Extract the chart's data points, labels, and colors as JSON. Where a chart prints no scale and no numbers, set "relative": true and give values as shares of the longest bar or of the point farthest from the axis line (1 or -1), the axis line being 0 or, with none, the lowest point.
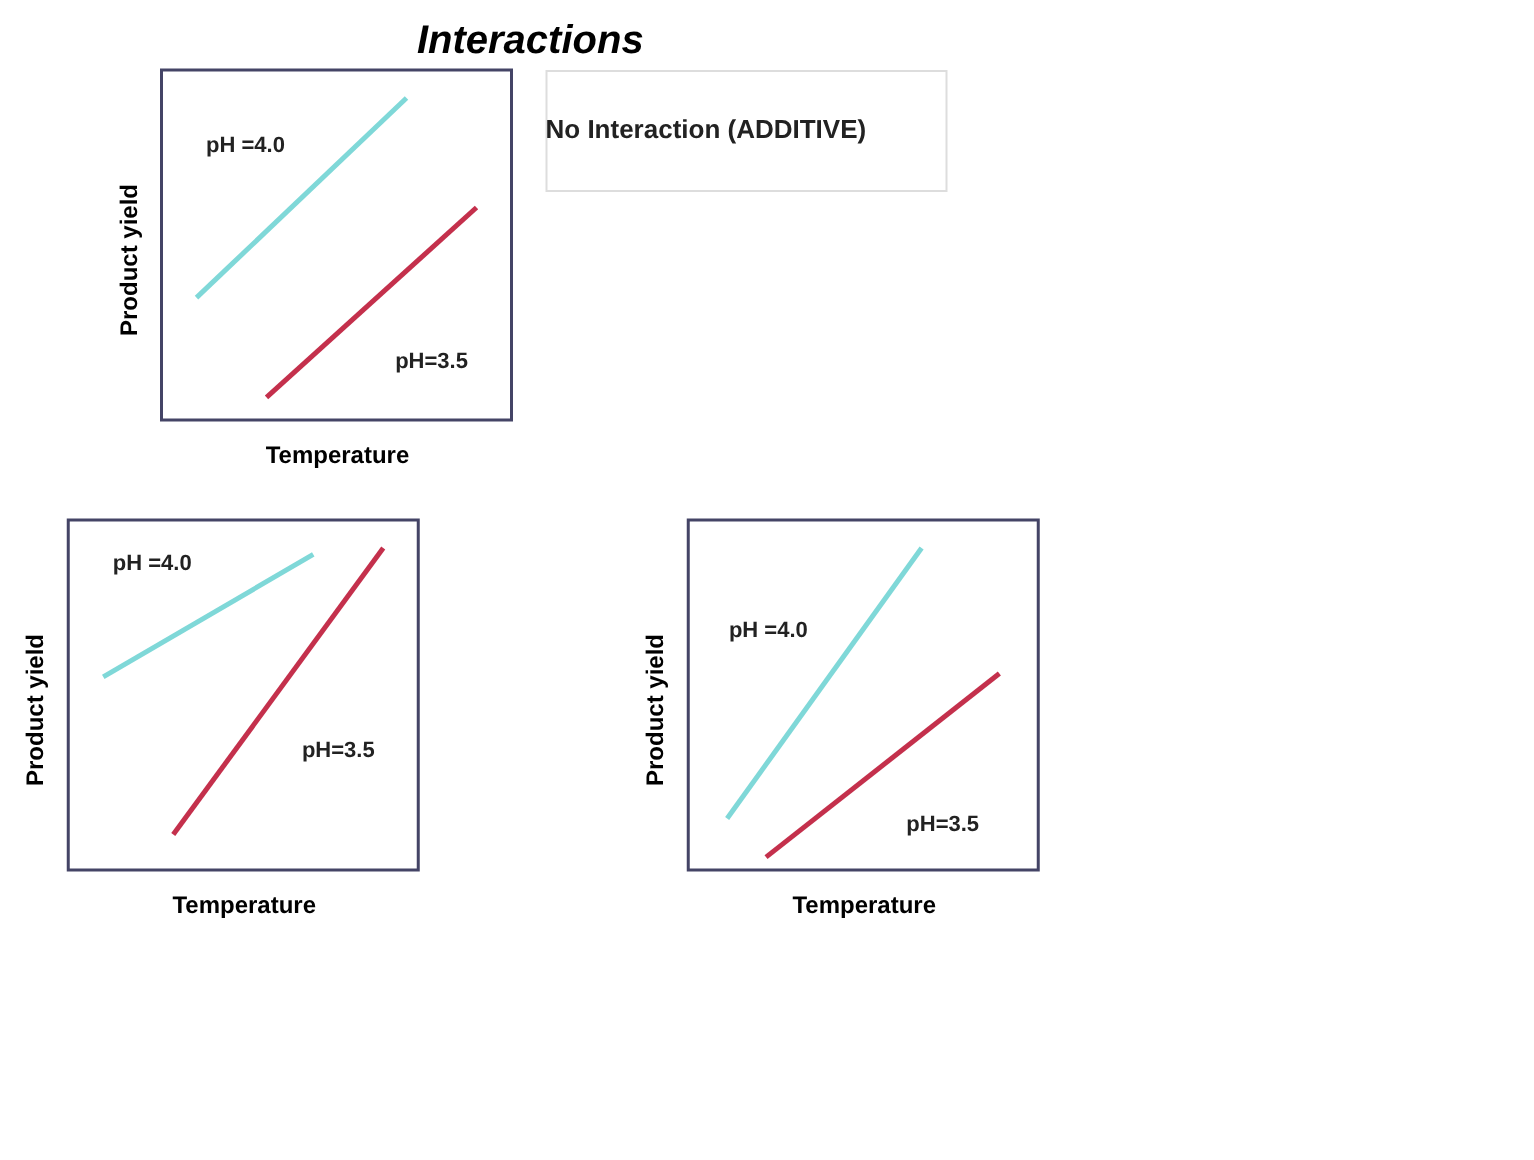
{
  "chart_data": [
    {
      "type": "line",
      "title": "Interactions",
      "xlabel": "Temperature",
      "ylabel": "Product yield",
      "relative": true,
      "tick_labels": false,
      "legend": false,
      "grid": false,
      "marker": "none",
      "line_style": "solid",
      "annotations": [
        "No Interaction (ADDITIVE)"
      ],
      "categories": [
        null,
        null,
        null,
        null,
        null,
        null,
        null,
        null,
        null
      ],
      "series": [
        {
          "name": "pH =4.0",
          "color": "#7fd8d8",
          "values": [
            0.38,
            null,
            null,
            null,
            null,
            null,
            1,
            null,
            null
          ]
        },
        {
          "name": "pH=3.5",
          "color": "#c4304c",
          "values": [
            null,
            null,
            0.07,
            null,
            null,
            null,
            null,
            null,
            0.66
          ]
        }
      ]
    },
    {
      "type": "line",
      "xlabel": "Temperature",
      "ylabel": "Product yield",
      "relative": true,
      "tick_labels": false,
      "legend": false,
      "grid": false,
      "marker": "none",
      "line_style": "solid",
      "categories": [
        null,
        null,
        null,
        null,
        null,
        null,
        null,
        null,
        null
      ],
      "series": [
        {
          "name": "pH =4.0",
          "color": "#7fd8d8",
          "values": [
            0.6,
            null,
            null,
            null,
            null,
            null,
            0.98,
            null,
            null
          ]
        },
        {
          "name": "pH=3.5",
          "color": "#c4304c",
          "values": [
            null,
            null,
            0.11,
            null,
            null,
            null,
            null,
            null,
            1
          ]
        }
      ]
    },
    {
      "type": "line",
      "xlabel": "Temperature",
      "ylabel": "Product yield",
      "relative": true,
      "tick_labels": false,
      "legend": false,
      "grid": false,
      "marker": "none",
      "line_style": "solid",
      "categories": [
        null,
        null,
        null,
        null,
        null,
        null,
        null,
        null
      ],
      "series": [
        {
          "name": "pH =4.0",
          "color": "#7fd8d8",
          "values": [
            0.16,
            null,
            null,
            null,
            null,
            1,
            null,
            null
          ]
        },
        {
          "name": "pH=3.5",
          "color": "#c4304c",
          "values": [
            null,
            0.04,
            null,
            null,
            null,
            null,
            null,
            0.61
          ]
        }
      ]
    }
  ]
}
